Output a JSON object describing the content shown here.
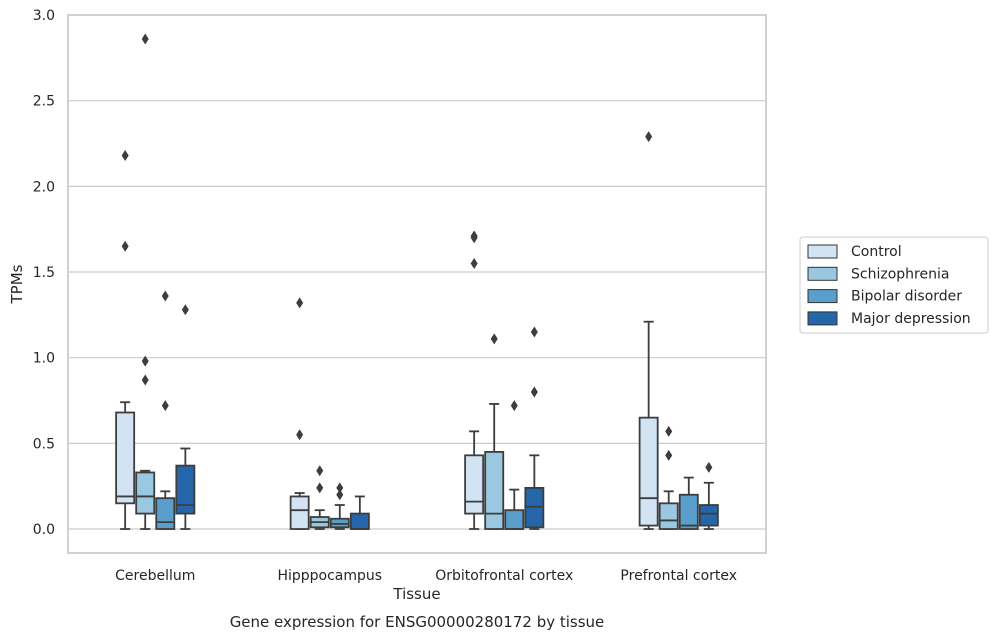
{
  "chart_data": {
    "type": "boxplot",
    "title": "Gene expression for ENSG00000280172 by tissue",
    "xlabel": "Tissue",
    "ylabel": "TPMs",
    "ylim": [
      -0.14,
      3.0
    ],
    "yticks": [
      "0.0",
      "0.5",
      "1.0",
      "1.5",
      "2.0",
      "2.5",
      "3.0"
    ],
    "ytick_values": [
      0.0,
      0.5,
      1.0,
      1.5,
      2.0,
      2.5,
      3.0
    ],
    "categories": [
      "Cerebellum",
      "Hipppocampus",
      "Orbitofrontal cortex",
      "Prefrontal cortex"
    ],
    "grid": true,
    "legend_position": "right",
    "series": [
      {
        "name": "Control",
        "color": "#d2e3f3",
        "boxes": [
          {
            "whislo": 0.0,
            "q1": 0.15,
            "med": 0.19,
            "q3": 0.68,
            "whishi": 0.74,
            "fliers": [
              2.18,
              1.65
            ]
          },
          {
            "whislo": 0.0,
            "q1": 0.0,
            "med": 0.11,
            "q3": 0.19,
            "whishi": 0.21,
            "fliers": [
              1.32,
              0.55
            ]
          },
          {
            "whislo": 0.0,
            "q1": 0.09,
            "med": 0.16,
            "q3": 0.43,
            "whishi": 0.57,
            "fliers": [
              1.71,
              1.7,
              1.55
            ]
          },
          {
            "whislo": 0.0,
            "q1": 0.02,
            "med": 0.18,
            "q3": 0.65,
            "whishi": 1.21,
            "fliers": [
              2.29
            ]
          }
        ]
      },
      {
        "name": "Schizophrenia",
        "color": "#9ac8e0",
        "boxes": [
          {
            "whislo": 0.0,
            "q1": 0.09,
            "med": 0.19,
            "q3": 0.33,
            "whishi": 0.34,
            "fliers": [
              2.86,
              0.98,
              0.87
            ]
          },
          {
            "whislo": 0.0,
            "q1": 0.01,
            "med": 0.04,
            "q3": 0.07,
            "whishi": 0.11,
            "fliers": [
              0.34,
              0.24
            ]
          },
          {
            "whislo": 0.0,
            "q1": 0.0,
            "med": 0.09,
            "q3": 0.45,
            "whishi": 0.73,
            "fliers": [
              1.11
            ]
          },
          {
            "whislo": 0.0,
            "q1": 0.0,
            "med": 0.05,
            "q3": 0.15,
            "whishi": 0.22,
            "fliers": [
              0.57,
              0.43
            ]
          }
        ]
      },
      {
        "name": "Bipolar disorder",
        "color": "#5a9ecb",
        "boxes": [
          {
            "whislo": 0.0,
            "q1": 0.0,
            "med": 0.04,
            "q3": 0.18,
            "whishi": 0.22,
            "fliers": [
              1.36,
              0.72
            ]
          },
          {
            "whislo": 0.0,
            "q1": 0.01,
            "med": 0.03,
            "q3": 0.06,
            "whishi": 0.14,
            "fliers": [
              0.24,
              0.2
            ]
          },
          {
            "whislo": 0.0,
            "q1": 0.0,
            "med": 0.0,
            "q3": 0.11,
            "whishi": 0.23,
            "fliers": [
              0.72
            ]
          },
          {
            "whislo": 0.0,
            "q1": 0.0,
            "med": 0.02,
            "q3": 0.2,
            "whishi": 0.3,
            "fliers": []
          }
        ]
      },
      {
        "name": "Major depression",
        "color": "#2466a9",
        "boxes": [
          {
            "whislo": 0.0,
            "q1": 0.09,
            "med": 0.14,
            "q3": 0.37,
            "whishi": 0.47,
            "fliers": [
              1.28
            ]
          },
          {
            "whislo": 0.0,
            "q1": 0.0,
            "med": 0.0,
            "q3": 0.09,
            "whishi": 0.19,
            "fliers": []
          },
          {
            "whislo": 0.0,
            "q1": 0.01,
            "med": 0.13,
            "q3": 0.24,
            "whishi": 0.43,
            "fliers": [
              1.15,
              0.8
            ]
          },
          {
            "whislo": 0.0,
            "q1": 0.02,
            "med": 0.09,
            "q3": 0.14,
            "whishi": 0.27,
            "fliers": [
              0.36
            ]
          }
        ]
      }
    ]
  }
}
